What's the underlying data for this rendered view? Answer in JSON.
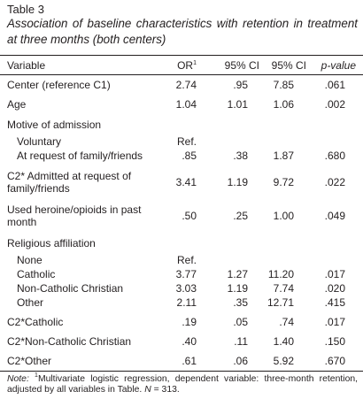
{
  "title": "Table 3",
  "caption": "Association of baseline characteristics with retention in treatment at three months (both centers)",
  "table": {
    "header": {
      "variable": "Variable",
      "or": "OR",
      "or_mark": "1",
      "ci_lower": "95% CI",
      "ci_upper": "95% CI",
      "p": "p-value"
    },
    "rows": [
      {
        "label": "Center (reference C1)",
        "values": [
          "2.74",
          ".95",
          "7.85",
          ".061"
        ]
      },
      {
        "label": "Age",
        "values": [
          "1.04",
          "1.01",
          "1.06",
          ".002"
        ]
      },
      {
        "heading": "Motive of admission",
        "rows": [
          {
            "label": "Voluntary",
            "values": [
              "Ref."
            ]
          },
          {
            "label": "At request of family/friends",
            "values": [
              ".85",
              ".38",
              "1.87",
              ".680"
            ]
          }
        ]
      },
      {
        "label": "C2* Admitted at request of family/friends",
        "values": [
          "3.41",
          "1.19",
          "9.72",
          ".022"
        ]
      },
      {
        "label": "Used heroine/opioids in past month",
        "values": [
          ".50",
          ".25",
          "1.00",
          ".049"
        ]
      },
      {
        "heading": "Religious affiliation",
        "rows": [
          {
            "label": "None",
            "values": [
              "Ref."
            ]
          },
          {
            "label": "Catholic",
            "values": [
              "3.77",
              "1.27",
              "11.20",
              ".017"
            ]
          },
          {
            "label": "Non-Catholic Christian",
            "values": [
              "3.03",
              "1.19",
              "7.74",
              ".020"
            ]
          },
          {
            "label": "Other",
            "values": [
              "2.11",
              ".35",
              "12.71",
              ".415"
            ]
          }
        ]
      },
      {
        "label": "C2*Catholic",
        "values": [
          ".19",
          ".05",
          ".74",
          ".017"
        ]
      },
      {
        "label": "C2*Non-Catholic Christian",
        "values": [
          ".40",
          ".11",
          "1.40",
          ".150"
        ]
      },
      {
        "label": "C2*Other",
        "values": [
          ".61",
          ".06",
          "5.92",
          ".670"
        ]
      }
    ]
  },
  "note": {
    "label": "Note:",
    "mark": "1",
    "text": "Multivariate logistic regression, dependent variable: three-month retention, adjusted by all variables in Table.",
    "n_label": "N",
    "n_value": "= 313."
  }
}
